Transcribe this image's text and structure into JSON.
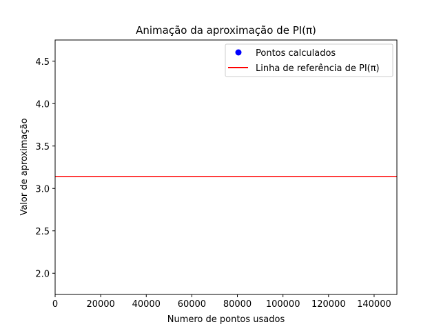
{
  "chart_data": {
    "type": "line",
    "title": "Animação da aproximação de PI(π)",
    "xlabel": "Numero de pontos usados",
    "ylabel": "Valor de aproximação",
    "xlim": [
      0,
      150000
    ],
    "ylim": [
      1.75,
      4.75
    ],
    "x_ticks": [
      0,
      20000,
      40000,
      60000,
      80000,
      100000,
      120000,
      140000
    ],
    "y_ticks": [
      2.0,
      2.5,
      3.0,
      3.5,
      4.0,
      4.5
    ],
    "y_tick_labels": [
      "2.0",
      "2.5",
      "3.0",
      "3.5",
      "4.0",
      "4.5"
    ],
    "grid": false,
    "legend_position": "upper-right",
    "series": [
      {
        "name": "Pontos calculados",
        "kind": "scatter",
        "color": "#0000ff",
        "x": [],
        "y": []
      },
      {
        "name": "Linha de referência de PI(π)",
        "kind": "hline",
        "color": "#ff0000",
        "y": 3.14159
      }
    ]
  }
}
